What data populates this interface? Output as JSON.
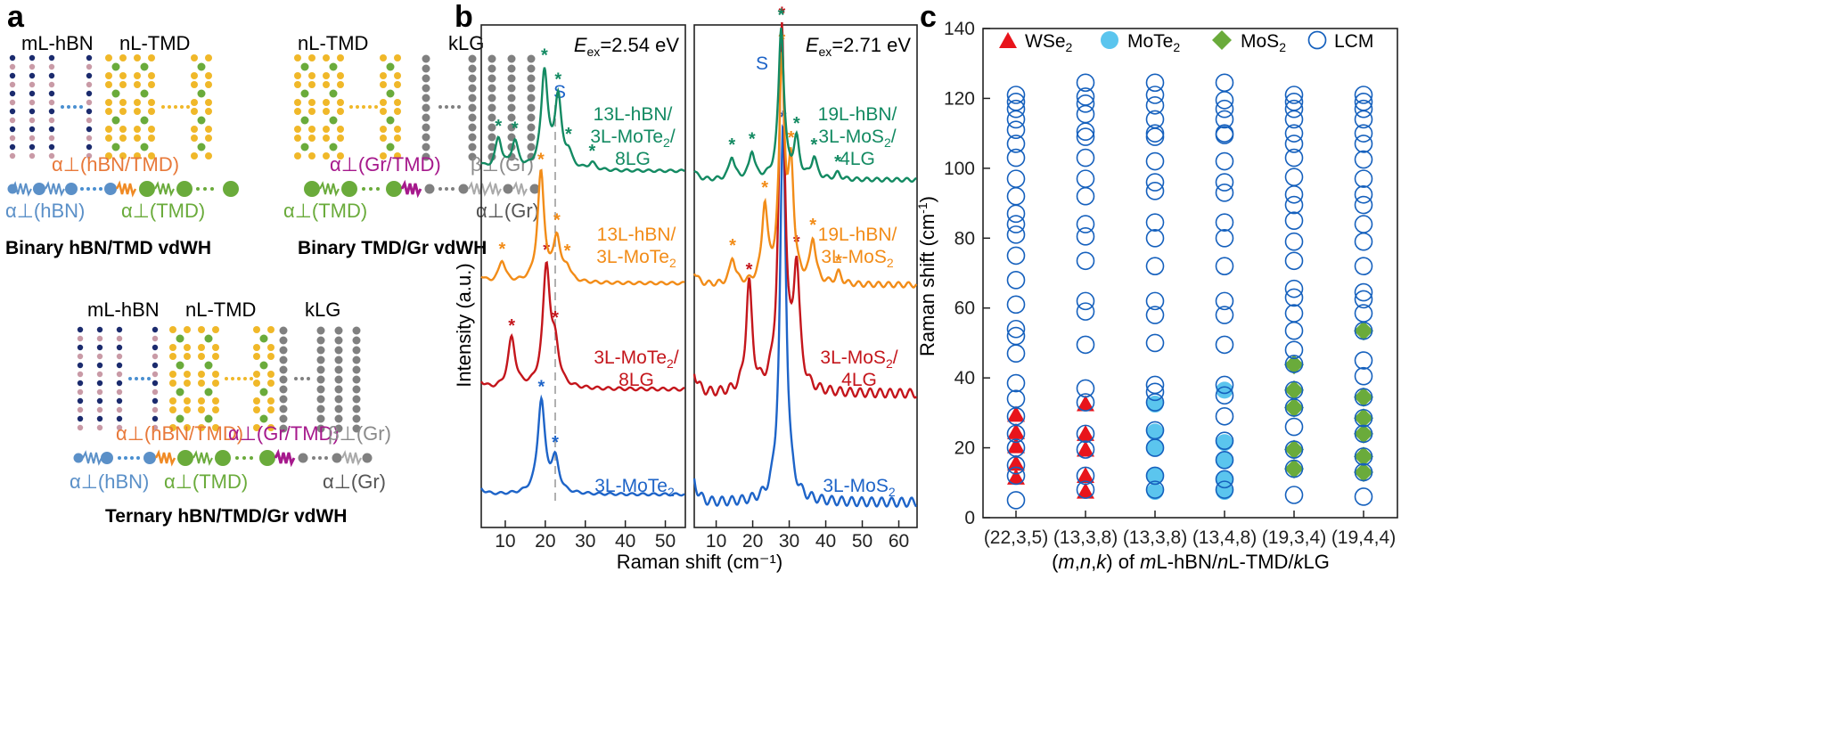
{
  "panel_a": {
    "label": "a",
    "binary1": {
      "top1": "mL-hBN",
      "top2": "nL-TMD",
      "coup1": "α⊥(hBN/TMD)",
      "sub1": "α⊥(hBN)",
      "sub2": "α⊥(TMD)",
      "caption": "Binary hBN/TMD vdWH"
    },
    "binary2": {
      "top1": "nL-TMD",
      "top2": "kLG",
      "coup1": "α⊥(Gr/TMD)",
      "coup2": "β⊥(Gr)",
      "sub1": "α⊥(TMD)",
      "sub2": "α⊥(Gr)",
      "caption": "Binary TMD/Gr vdWH"
    },
    "ternary": {
      "top1": "mL-hBN",
      "top2": "nL-TMD",
      "top3": "kLG",
      "coup1": "α⊥(hBN/TMD)",
      "coup2": "α⊥(Gr/TMD)",
      "coup3": "β⊥(Gr)",
      "sub1": "α⊥(hBN)",
      "sub2": "α⊥(TMD)",
      "sub3": "α⊥(Gr)",
      "caption": "Ternary hBN/TMD/Gr vdWH"
    }
  },
  "panel_b": {
    "label": "b",
    "ylabel": "Intensity (a.u.)",
    "xlabel": "Raman shift (cm⁻¹)",
    "left": {
      "energy": "Eex=2.54 eV",
      "s_mark": "S",
      "x_ticks": [
        "10",
        "20",
        "30",
        "40",
        "50"
      ],
      "spectra": [
        {
          "l1": "13L-hBN/",
          "l2": "3L-MoTe2/",
          "l3": "8LG"
        },
        {
          "l1": "13L-hBN/",
          "l2": "3L-MoTe2"
        },
        {
          "l1": "3L-MoTe2/",
          "l2": "8LG"
        },
        {
          "l1": "3L-MoTe2"
        }
      ]
    },
    "right": {
      "energy": "Eex=2.71 eV",
      "s_mark": "S",
      "x_ticks": [
        "10",
        "20",
        "30",
        "40",
        "50",
        "60"
      ],
      "spectra": [
        {
          "l1": "19L-hBN/",
          "l2": "3L-MoS2/",
          "l3": "4LG"
        },
        {
          "l1": "19L-hBN/",
          "l2": "3L-MoS2"
        },
        {
          "l1": "3L-MoS2/",
          "l2": "4LG"
        },
        {
          "l1": "3L-MoS2"
        }
      ]
    }
  },
  "panel_c": {
    "label": "c",
    "ylabel": "Raman shift (cm⁻¹)",
    "xlabel": "(m,n,k) of mL-hBN/nL-TMD/kLG",
    "legend": [
      "WSe2",
      "MoTe2",
      "MoS2",
      "LCM"
    ]
  },
  "colors": {
    "green": "#138a62",
    "orange": "#f28c18",
    "red": "#c4161c",
    "blue": "#1e64c8",
    "wse2": "#e8141b",
    "mote2": "#5bc5ee",
    "mos2": "#6aab3b",
    "lcm": "#1560bd",
    "gray": "#808080",
    "pink": "#c99aa6",
    "navy": "#1b2b6e",
    "yellow": "#f0b829"
  },
  "chart_data": [
    {
      "type": "line",
      "title": "Eex=2.54 eV",
      "xlabel": "Raman shift (cm-1)",
      "ylabel": "Intensity (a.u.)",
      "xlim": [
        4,
        55
      ],
      "series": [
        {
          "name": "3L-MoTe2",
          "peaks": [
            [
              19,
              1.0
            ],
            [
              22.5,
              0.35
            ]
          ]
        },
        {
          "name": "3L-MoTe2/8LG",
          "peaks": [
            [
              11.6,
              0.42
            ],
            [
              20.3,
              1.0
            ],
            [
              22.5,
              0.3
            ]
          ]
        },
        {
          "name": "13L-hBN/3L-MoTe2",
          "peaks": [
            [
              9.2,
              0.2
            ],
            [
              18.9,
              1.0
            ],
            [
              22.9,
              0.4
            ],
            [
              25.5,
              0.12
            ]
          ]
        },
        {
          "name": "13L-hBN/3L-MoTe2/8LG",
          "peaks": [
            [
              8.3,
              0.32
            ],
            [
              12.4,
              0.28
            ],
            [
              19.8,
              1.0
            ],
            [
              23.2,
              0.72
            ],
            [
              25.8,
              0.14
            ],
            [
              31.7,
              0.07
            ]
          ]
        }
      ]
    },
    {
      "type": "line",
      "title": "Eex=2.71 eV",
      "xlabel": "Raman shift (cm-1)",
      "ylabel": "Intensity (a.u.)",
      "xlim": [
        4,
        65
      ],
      "series": [
        {
          "name": "3L-MoS2",
          "peaks": [
            [
              28.3,
              1.0
            ]
          ]
        },
        {
          "name": "3L-MoS2/4LG",
          "peaks": [
            [
              19,
              0.3
            ],
            [
              28,
              1.0
            ],
            [
              32,
              0.33
            ]
          ]
        },
        {
          "name": "19L-hBN/3L-MoS2",
          "peaks": [
            [
              14.5,
              0.12
            ],
            [
              23.3,
              0.35
            ],
            [
              28,
              1.0
            ],
            [
              30.5,
              0.5
            ],
            [
              36.5,
              0.2
            ],
            [
              43.5,
              0.05
            ]
          ]
        },
        {
          "name": "19L-hBN/3L-MoS2/4LG",
          "peaks": [
            [
              14.3,
              0.15
            ],
            [
              19.8,
              0.18
            ],
            [
              27.8,
              1.0
            ],
            [
              32,
              0.25
            ],
            [
              36.8,
              0.14
            ],
            [
              43.3,
              0.04
            ]
          ]
        }
      ]
    },
    {
      "type": "scatter",
      "xlabel": "(m,n,k) of mL-hBN/nL-TMD/kLG",
      "ylabel": "Raman shift (cm-1)",
      "ylim": [
        0,
        140
      ],
      "categories": [
        "(22,3,5)",
        "(13,3,8)",
        "(13,3,8)",
        "(13,4,8)",
        "(19,3,4)",
        "(19,4,4)"
      ],
      "series": [
        {
          "name": "WSe2",
          "points": [
            [
              0,
              11.5
            ],
            [
              0,
              15.5
            ],
            [
              0,
              20.5
            ],
            [
              0,
              24.5
            ],
            [
              0,
              29.5
            ],
            [
              1,
              7.5
            ],
            [
              1,
              12
            ],
            [
              1,
              19.5
            ],
            [
              1,
              24
            ],
            [
              1,
              32.5
            ]
          ]
        },
        {
          "name": "MoTe2",
          "points": [
            [
              2,
              7.5
            ],
            [
              2,
              12
            ],
            [
              2,
              20
            ],
            [
              2,
              24.5
            ],
            [
              2,
              32.5
            ],
            [
              3,
              7.5
            ],
            [
              3,
              11.2
            ],
            [
              3,
              16.5
            ],
            [
              3,
              21.5
            ],
            [
              3,
              36.5
            ]
          ]
        },
        {
          "name": "MoS2",
          "points": [
            [
              4,
              14
            ],
            [
              4,
              19.5
            ],
            [
              4,
              31.5
            ],
            [
              4,
              36.5
            ],
            [
              4,
              43.8
            ],
            [
              5,
              13
            ],
            [
              5,
              17.5
            ],
            [
              5,
              24
            ],
            [
              5,
              28.5
            ],
            [
              5,
              34.5
            ],
            [
              5,
              53.5
            ]
          ]
        },
        {
          "name": "LCM",
          "columns": [
            [
              5,
              12,
              15,
              20,
              24,
              29,
              34,
              38.5,
              47,
              52,
              54,
              61,
              68,
              75,
              81,
              84,
              87,
              92,
              97,
              103,
              107,
              111,
              114,
              117,
              119,
              121
            ],
            [
              8,
              12,
              19.5,
              24,
              33,
              37,
              49.5,
              59,
              62,
              73.5,
              80.5,
              84,
              92,
              97,
              103,
              109,
              110.5,
              115.5,
              118.5,
              120.5,
              124.5
            ],
            [
              8,
              12,
              20,
              25,
              33,
              36,
              38,
              50,
              58,
              62,
              72,
              80,
              84.5,
              93.5,
              96,
              102,
              109,
              110,
              114,
              118,
              121,
              124.5
            ],
            [
              8,
              11,
              16.5,
              22,
              29,
              35,
              38,
              49.5,
              58,
              62,
              72,
              80,
              84.5,
              93,
              96,
              102,
              109.5,
              110,
              114,
              117,
              119.5,
              124.5
            ],
            [
              6.5,
              14,
              19.5,
              26,
              31.5,
              36.5,
              44,
              48,
              53.5,
              58.5,
              63,
              65.5,
              73.5,
              79,
              85,
              89.5,
              92.5,
              97.5,
              103,
              107,
              110,
              114,
              117,
              119,
              121
            ],
            [
              6,
              13,
              17.5,
              24,
              28.5,
              34.5,
              40.5,
              45,
              53.5,
              58.5,
              62.5,
              64.5,
              72,
              79,
              84,
              89.5,
              92.5,
              97,
              102.5,
              107,
              110,
              114,
              117,
              119,
              121
            ]
          ]
        }
      ]
    }
  ]
}
